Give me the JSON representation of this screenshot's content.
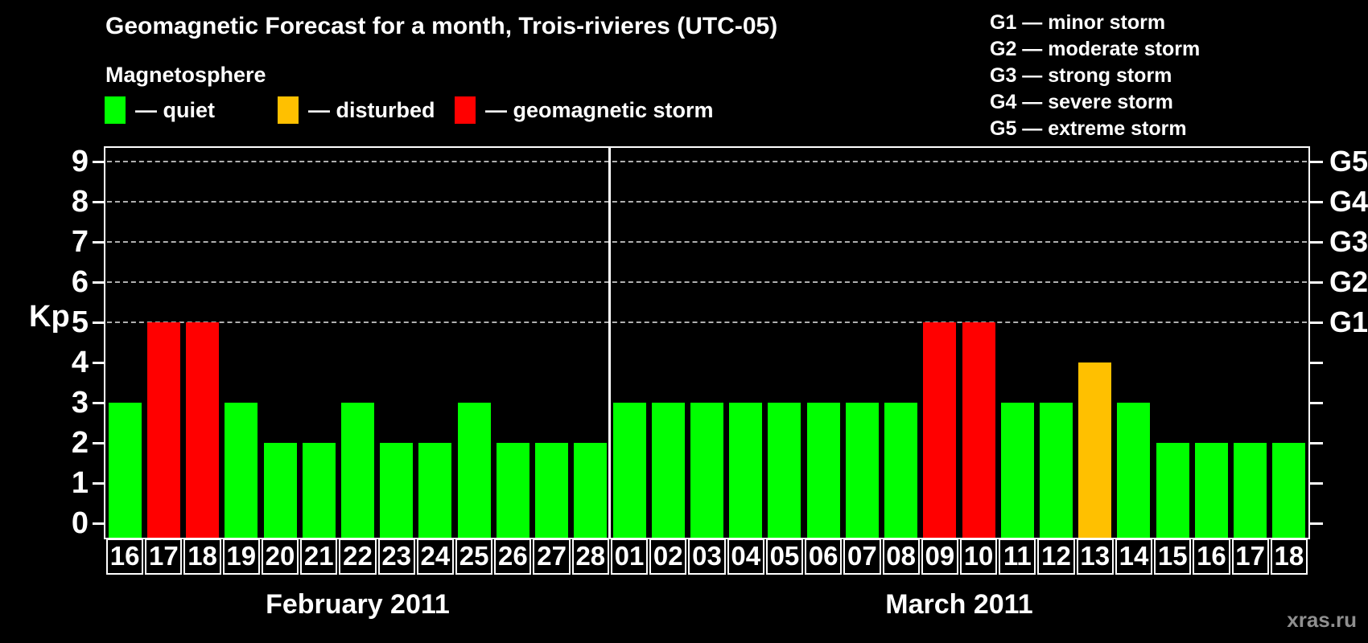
{
  "title": "Geomagnetic Forecast for a month, Trois-rivieres (UTC-05)",
  "watermark": "xras.ru",
  "ylabel": "Kp",
  "legend": {
    "title": "Magnetosphere",
    "items": [
      {
        "key": "quiet",
        "label": "— quiet",
        "color": "#00ff00"
      },
      {
        "key": "disturbed",
        "label": "— disturbed",
        "color": "#ffc000"
      },
      {
        "key": "storm",
        "label": "— geomagnetic storm",
        "color": "#ff0000"
      }
    ]
  },
  "g_scale_legend": [
    "G1 — minor storm",
    "G2 — moderate storm",
    "G3 — strong storm",
    "G4 — severe storm",
    "G5 — extreme storm"
  ],
  "chart_data": {
    "type": "bar",
    "title": "Geomagnetic Forecast for a month, Trois-rivieres (UTC-05)",
    "ylabel": "Kp",
    "ylim": [
      0,
      9.35
    ],
    "yticks": [
      0,
      1,
      2,
      3,
      4,
      5,
      6,
      7,
      8,
      9
    ],
    "gridlines_at_kp": [
      5,
      6,
      7,
      8,
      9
    ],
    "right_axis_labels": [
      {
        "kp": 5,
        "label": "G1"
      },
      {
        "kp": 6,
        "label": "G2"
      },
      {
        "kp": 7,
        "label": "G3"
      },
      {
        "kp": 8,
        "label": "G4"
      },
      {
        "kp": 9,
        "label": "G5"
      }
    ],
    "colors": {
      "quiet": "#00ff00",
      "disturbed": "#ffc000",
      "storm": "#ff0000"
    },
    "groups": [
      {
        "label": "February 2011",
        "days": [
          "16",
          "17",
          "18",
          "19",
          "20",
          "21",
          "22",
          "23",
          "24",
          "25",
          "26",
          "27",
          "28"
        ],
        "values": [
          3,
          5,
          5,
          3,
          2,
          2,
          3,
          2,
          2,
          3,
          2,
          2,
          2
        ],
        "status": [
          "quiet",
          "storm",
          "storm",
          "quiet",
          "quiet",
          "quiet",
          "quiet",
          "quiet",
          "quiet",
          "quiet",
          "quiet",
          "quiet",
          "quiet"
        ]
      },
      {
        "label": "March 2011",
        "days": [
          "01",
          "02",
          "03",
          "04",
          "05",
          "06",
          "07",
          "08",
          "09",
          "10",
          "11",
          "12",
          "13",
          "14",
          "15",
          "16",
          "17",
          "18"
        ],
        "values": [
          3,
          3,
          3,
          3,
          3,
          3,
          3,
          3,
          5,
          5,
          3,
          3,
          4,
          3,
          2,
          2,
          2,
          2
        ],
        "status": [
          "quiet",
          "quiet",
          "quiet",
          "quiet",
          "quiet",
          "quiet",
          "quiet",
          "quiet",
          "storm",
          "storm",
          "quiet",
          "quiet",
          "disturbed",
          "quiet",
          "quiet",
          "quiet",
          "quiet",
          "quiet"
        ]
      }
    ]
  }
}
